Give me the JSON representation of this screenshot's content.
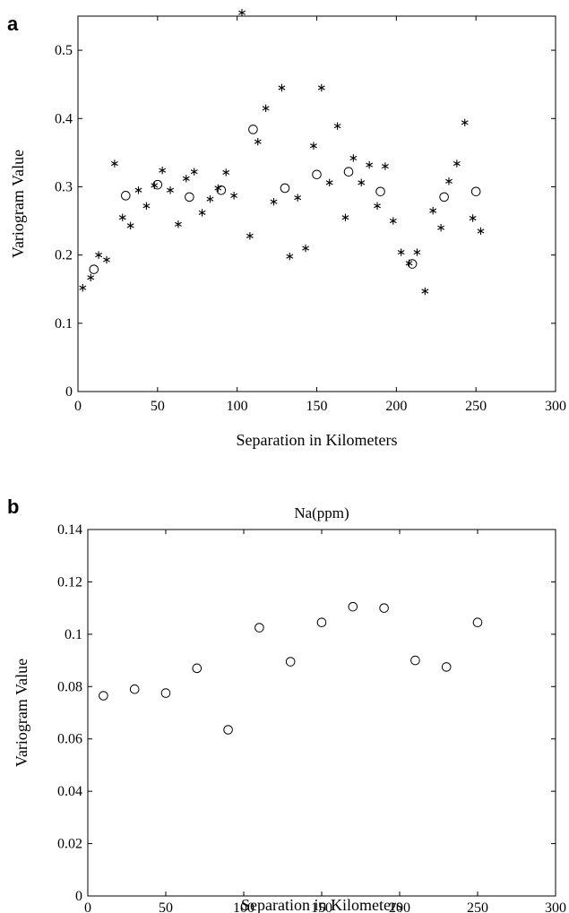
{
  "chart_data": [
    {
      "panel_label": "a",
      "type": "scatter",
      "title": "",
      "xlabel": "Separation in Kilometers",
      "ylabel": "Variogram Value",
      "xlim": [
        0,
        300
      ],
      "ylim": [
        0,
        0.55
      ],
      "xticks": [
        0,
        50,
        100,
        150,
        200,
        250,
        300
      ],
      "yticks": [
        0,
        0.1,
        0.2,
        0.3,
        0.4,
        0.5
      ],
      "xtick_labels": [
        "0",
        "50",
        "100",
        "150",
        "200",
        "250",
        "300"
      ],
      "ytick_labels": [
        "0",
        "0.1",
        "0.2",
        "0.3",
        "0.4",
        "0.5"
      ],
      "grid": false,
      "legend": "none",
      "series": [
        {
          "marker": "asterisk",
          "x": [
            3,
            8,
            13,
            18,
            23,
            28,
            33,
            38,
            43,
            48,
            53,
            58,
            63,
            68,
            73,
            78,
            83,
            88,
            93,
            98,
            103,
            108,
            113,
            118,
            123,
            128,
            133,
            138,
            143,
            148,
            153,
            158,
            163,
            168,
            173,
            178,
            183,
            188,
            193,
            198,
            203,
            208,
            213,
            218,
            223,
            228,
            233,
            238,
            243,
            248,
            253
          ],
          "y": [
            0.152,
            0.167,
            0.2,
            0.193,
            0.334,
            0.255,
            0.243,
            0.295,
            0.272,
            0.302,
            0.324,
            0.295,
            0.245,
            0.312,
            0.322,
            0.262,
            0.282,
            0.298,
            0.321,
            0.287,
            0.555,
            0.228,
            0.366,
            0.415,
            0.278,
            0.445,
            0.198,
            0.284,
            0.21,
            0.36,
            0.445,
            0.306,
            0.389,
            0.255,
            0.342,
            0.306,
            0.332,
            0.272,
            0.33,
            0.25,
            0.204,
            0.188,
            0.204,
            0.147,
            0.265,
            0.24,
            0.308,
            0.334,
            0.394,
            0.254,
            0.235
          ]
        },
        {
          "marker": "circle",
          "x": [
            10,
            30,
            50,
            70,
            90,
            110,
            130,
            150,
            170,
            190,
            210,
            230,
            250
          ],
          "y": [
            0.179,
            0.287,
            0.303,
            0.285,
            0.295,
            0.384,
            0.298,
            0.318,
            0.322,
            0.293,
            0.187,
            0.285,
            0.293
          ]
        }
      ]
    },
    {
      "panel_label": "b",
      "type": "scatter",
      "title": "Na(ppm)",
      "xlabel": "Separation in Kilometers",
      "ylabel": "Variogram Value",
      "xlim": [
        0,
        300
      ],
      "ylim": [
        0,
        0.14
      ],
      "xticks": [
        0,
        50,
        100,
        150,
        200,
        250,
        300
      ],
      "yticks": [
        0,
        0.02,
        0.04,
        0.06,
        0.08,
        0.1,
        0.12,
        0.14
      ],
      "xtick_labels": [
        "0",
        "50",
        "100",
        "150",
        "200",
        "250",
        "300"
      ],
      "ytick_labels": [
        "0",
        "0.02",
        "0.04",
        "0.06",
        "0.08",
        "0.1",
        "0.12",
        "0.14"
      ],
      "grid": false,
      "legend": "none",
      "series": [
        {
          "marker": "circle",
          "x": [
            10,
            30,
            50,
            70,
            90,
            110,
            130,
            150,
            170,
            190,
            210,
            230,
            250
          ],
          "y": [
            0.0765,
            0.079,
            0.0775,
            0.087,
            0.0635,
            0.1025,
            0.0895,
            0.1045,
            0.1105,
            0.11,
            0.09,
            0.0875,
            0.1045
          ]
        }
      ]
    }
  ]
}
